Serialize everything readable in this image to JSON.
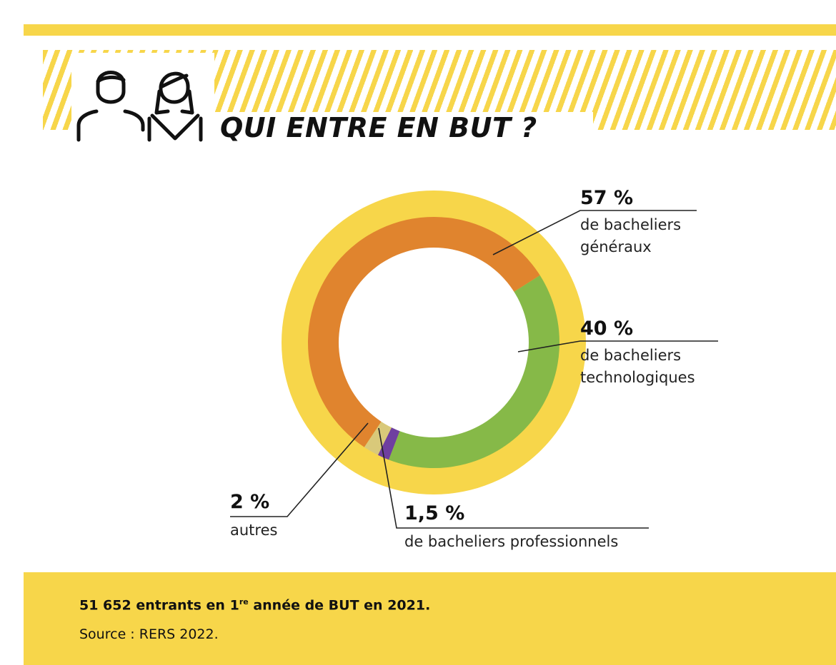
{
  "header": {
    "title": "QUI ENTRE EN BUT ?"
  },
  "colors": {
    "yellow": "#f7d64a",
    "orange": "#e0842e",
    "green": "#86b948",
    "purple": "#6f3fa0",
    "beige": "#d9c97a"
  },
  "icons": [
    "people-icon"
  ],
  "chart_data": {
    "type": "pie",
    "title": "QUI ENTRE EN BUT ?",
    "slices": [
      {
        "value": 57,
        "label": "57 %",
        "description": "de bacheliers généraux",
        "color": "#e0842e"
      },
      {
        "value": 40,
        "label": "40 %",
        "description": "de bacheliers technologiques",
        "color": "#86b948"
      },
      {
        "value": 1.5,
        "label": "1,5 %",
        "description": "de bacheliers professionnels",
        "color": "#6f3fa0"
      },
      {
        "value": 2,
        "label": "2 %",
        "description": "autres",
        "color": "#d9c97a"
      }
    ]
  },
  "labels": {
    "generaux_pct": "57 %",
    "generaux_line1": "de bacheliers",
    "generaux_line2": "généraux",
    "techno_pct": "40 %",
    "techno_line1": "de bacheliers",
    "techno_line2": "technologiques",
    "pro_pct": "1,5 %",
    "pro_line1": "de bacheliers professionnels",
    "autres_pct": "2 %",
    "autres_line1": "autres"
  },
  "footer": {
    "main_pre": "51 652 entrants en 1",
    "main_sup": "re",
    "main_post": " année de BUT en 2021.",
    "source": "Source : RERS 2022."
  }
}
